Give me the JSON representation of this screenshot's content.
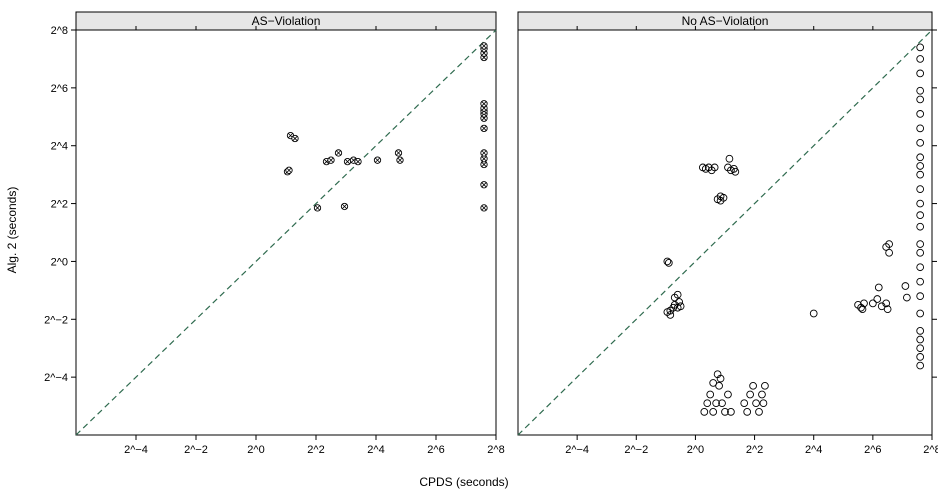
{
  "chart_data": {
    "type": "scatter",
    "xlabel": "CPDS (seconds)",
    "ylabel": "Alg. 2 (seconds)",
    "scale": "log2",
    "xlim": [
      -6,
      8
    ],
    "ylim": [
      -6,
      8
    ],
    "x_ticks": [
      -4,
      -2,
      0,
      2,
      4,
      6,
      8
    ],
    "x_tick_labels": [
      "2^−4",
      "2^−2",
      "2^0",
      "2^2",
      "2^4",
      "2^6",
      "2^8"
    ],
    "y_ticks": [
      -4,
      -2,
      0,
      2,
      4,
      6,
      8
    ],
    "y_tick_labels": [
      "2^−4",
      "2^−2",
      "2^0",
      "2^2",
      "2^4",
      "2^6",
      "2^8"
    ],
    "reference_line": "y = x (dashed)",
    "colors": {
      "strip": "#e6e6e6",
      "diagonal": "#2f6b4f",
      "points": "#000000"
    },
    "panels": [
      {
        "title": "AS−Violation",
        "marker": "crossed-circle",
        "points": [
          [
            1.05,
            3.1
          ],
          [
            1.1,
            3.15
          ],
          [
            1.15,
            4.35
          ],
          [
            1.3,
            4.25
          ],
          [
            2.05,
            1.85
          ],
          [
            2.35,
            3.45
          ],
          [
            2.5,
            3.5
          ],
          [
            2.75,
            3.75
          ],
          [
            2.95,
            1.9
          ],
          [
            3.05,
            3.45
          ],
          [
            3.25,
            3.5
          ],
          [
            3.4,
            3.45
          ],
          [
            4.05,
            3.5
          ],
          [
            4.75,
            3.75
          ],
          [
            4.8,
            3.5
          ],
          [
            7.6,
            1.85
          ],
          [
            7.6,
            2.65
          ],
          [
            7.6,
            3.35
          ],
          [
            7.6,
            3.55
          ],
          [
            7.6,
            3.75
          ],
          [
            7.6,
            4.6
          ],
          [
            7.6,
            4.95
          ],
          [
            7.6,
            5.1
          ],
          [
            7.6,
            5.2
          ],
          [
            7.6,
            5.3
          ],
          [
            7.6,
            5.45
          ],
          [
            7.6,
            7.05
          ],
          [
            7.6,
            7.2
          ],
          [
            7.6,
            7.35
          ],
          [
            7.6,
            7.45
          ]
        ]
      },
      {
        "title": "No AS−Violation",
        "marker": "circle",
        "points": [
          [
            -0.95,
            -1.75
          ],
          [
            -0.85,
            -1.7
          ],
          [
            -0.75,
            -1.6
          ],
          [
            -0.7,
            -1.5
          ],
          [
            -0.6,
            -1.6
          ],
          [
            -0.55,
            -1.4
          ],
          [
            -0.5,
            -1.55
          ],
          [
            -0.7,
            -1.25
          ],
          [
            -0.6,
            -1.15
          ],
          [
            -0.85,
            -1.85
          ],
          [
            -0.95,
            0.0
          ],
          [
            -0.9,
            -0.05
          ],
          [
            0.25,
            3.25
          ],
          [
            0.35,
            3.2
          ],
          [
            0.45,
            3.25
          ],
          [
            0.55,
            3.15
          ],
          [
            0.65,
            3.25
          ],
          [
            0.75,
            2.15
          ],
          [
            0.85,
            2.1
          ],
          [
            0.95,
            2.2
          ],
          [
            0.85,
            2.25
          ],
          [
            1.1,
            3.25
          ],
          [
            1.2,
            3.15
          ],
          [
            1.3,
            3.2
          ],
          [
            1.35,
            3.1
          ],
          [
            1.15,
            3.55
          ],
          [
            0.3,
            -5.2
          ],
          [
            0.4,
            -4.9
          ],
          [
            0.5,
            -4.6
          ],
          [
            0.6,
            -5.2
          ],
          [
            0.7,
            -4.9
          ],
          [
            0.8,
            -4.3
          ],
          [
            0.9,
            -4.9
          ],
          [
            1.0,
            -5.2
          ],
          [
            1.1,
            -4.6
          ],
          [
            1.2,
            -5.2
          ],
          [
            0.75,
            -3.9
          ],
          [
            0.85,
            -4.05
          ],
          [
            0.6,
            -4.2
          ],
          [
            1.65,
            -4.9
          ],
          [
            1.75,
            -5.2
          ],
          [
            1.85,
            -4.6
          ],
          [
            1.95,
            -4.3
          ],
          [
            2.05,
            -4.9
          ],
          [
            2.15,
            -5.2
          ],
          [
            2.25,
            -4.6
          ],
          [
            2.35,
            -4.3
          ],
          [
            2.3,
            -4.9
          ],
          [
            4.0,
            -1.8
          ],
          [
            5.5,
            -1.5
          ],
          [
            5.6,
            -1.6
          ],
          [
            5.7,
            -1.45
          ],
          [
            5.65,
            -1.65
          ],
          [
            6.0,
            -1.45
          ],
          [
            6.15,
            -1.3
          ],
          [
            6.3,
            -1.55
          ],
          [
            6.45,
            -1.45
          ],
          [
            6.5,
            -1.65
          ],
          [
            6.2,
            -0.9
          ],
          [
            6.45,
            0.5
          ],
          [
            6.55,
            0.6
          ],
          [
            6.55,
            0.3
          ],
          [
            7.1,
            -0.85
          ],
          [
            7.15,
            -1.25
          ],
          [
            7.6,
            -3.6
          ],
          [
            7.6,
            -3.3
          ],
          [
            7.6,
            -3.0
          ],
          [
            7.6,
            -2.7
          ],
          [
            7.6,
            -2.4
          ],
          [
            7.6,
            -1.8
          ],
          [
            7.6,
            -1.2
          ],
          [
            7.6,
            -0.7
          ],
          [
            7.6,
            -0.2
          ],
          [
            7.6,
            0.3
          ],
          [
            7.6,
            0.6
          ],
          [
            7.6,
            1.2
          ],
          [
            7.6,
            1.6
          ],
          [
            7.6,
            2.0
          ],
          [
            7.6,
            2.5
          ],
          [
            7.6,
            3.0
          ],
          [
            7.6,
            3.3
          ],
          [
            7.6,
            3.6
          ],
          [
            7.6,
            4.1
          ],
          [
            7.6,
            4.6
          ],
          [
            7.6,
            5.1
          ],
          [
            7.6,
            5.6
          ],
          [
            7.6,
            5.9
          ],
          [
            7.6,
            6.5
          ],
          [
            7.6,
            7.0
          ],
          [
            7.6,
            7.4
          ]
        ]
      }
    ]
  }
}
